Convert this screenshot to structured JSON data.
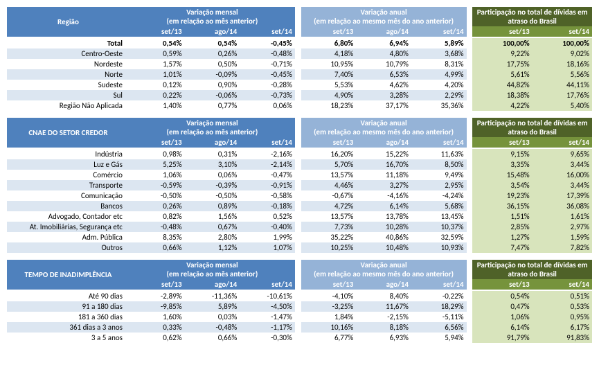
{
  "columns": {
    "monthly": {
      "title_line1": "Variação mensal",
      "title_line2": "(em relação ao mês anterior)",
      "periods": [
        "set/13",
        "ago/14",
        "set/14"
      ]
    },
    "annual": {
      "title_line1": "Variação anual",
      "title_line2": "(em relação ao mesmo mês do ano anterior)",
      "periods": [
        "set/13",
        "ago/14",
        "set/14"
      ]
    },
    "share": {
      "title_line1": "Participação no total de dívidas em",
      "title_line2": "atraso do Brasil",
      "periods": [
        "set/13",
        "set/14"
      ]
    }
  },
  "panels": [
    {
      "header": "Região",
      "rows": [
        {
          "label": "Total",
          "total": true,
          "monthly": [
            "0,54%",
            "0,54%",
            "-0,45%"
          ],
          "annual": [
            "6,80%",
            "6,94%",
            "5,89%"
          ],
          "share": [
            "100,00%",
            "100,00%"
          ]
        },
        {
          "label": "Centro-Oeste",
          "monthly": [
            "0,59%",
            "0,26%",
            "-0,48%"
          ],
          "annual": [
            "4,18%",
            "4,80%",
            "3,68%"
          ],
          "share": [
            "9,22%",
            "9,02%"
          ]
        },
        {
          "label": "Nordeste",
          "monthly": [
            "1,57%",
            "0,50%",
            "-0,71%"
          ],
          "annual": [
            "10,95%",
            "10,79%",
            "8,31%"
          ],
          "share": [
            "17,75%",
            "18,16%"
          ]
        },
        {
          "label": "Norte",
          "monthly": [
            "1,01%",
            "-0,09%",
            "-0,45%"
          ],
          "annual": [
            "7,40%",
            "6,53%",
            "4,99%"
          ],
          "share": [
            "5,61%",
            "5,56%"
          ]
        },
        {
          "label": "Sudeste",
          "monthly": [
            "0,12%",
            "0,90%",
            "-0,28%"
          ],
          "annual": [
            "5,53%",
            "4,62%",
            "4,20%"
          ],
          "share": [
            "44,82%",
            "44,11%"
          ]
        },
        {
          "label": "Sul",
          "monthly": [
            "0,22%",
            "-0,06%",
            "-0,73%"
          ],
          "annual": [
            "4,90%",
            "3,28%",
            "2,29%"
          ],
          "share": [
            "18,38%",
            "17,76%"
          ]
        },
        {
          "label": "Região Não Aplicada",
          "monthly": [
            "1,40%",
            "0,77%",
            "0,06%"
          ],
          "annual": [
            "18,23%",
            "37,17%",
            "35,36%"
          ],
          "share": [
            "4,22%",
            "5,40%"
          ]
        }
      ]
    },
    {
      "header": "CNAE DO SETOR CREDOR",
      "rows": [
        {
          "label": "Indústria",
          "monthly": [
            "0,98%",
            "0,31%",
            "-2,16%"
          ],
          "annual": [
            "16,20%",
            "15,22%",
            "11,63%"
          ],
          "share": [
            "9,15%",
            "9,65%"
          ]
        },
        {
          "label": "Luz e Gás",
          "monthly": [
            "5,25%",
            "3,10%",
            "-2,14%"
          ],
          "annual": [
            "5,70%",
            "16,70%",
            "8,50%"
          ],
          "share": [
            "3,35%",
            "3,44%"
          ]
        },
        {
          "label": "Comércio",
          "monthly": [
            "1,06%",
            "0,06%",
            "-0,47%"
          ],
          "annual": [
            "13,57%",
            "11,18%",
            "9,49%"
          ],
          "share": [
            "15,48%",
            "16,00%"
          ]
        },
        {
          "label": "Transporte",
          "monthly": [
            "-0,59%",
            "-0,39%",
            "-0,91%"
          ],
          "annual": [
            "4,46%",
            "3,27%",
            "2,95%"
          ],
          "share": [
            "3,54%",
            "3,44%"
          ]
        },
        {
          "label": "Comunicação",
          "monthly": [
            "-0,50%",
            "-0,50%",
            "-0,58%"
          ],
          "annual": [
            "-0,67%",
            "-4,16%",
            "-4,24%"
          ],
          "share": [
            "19,23%",
            "17,39%"
          ]
        },
        {
          "label": "Bancos",
          "monthly": [
            "0,26%",
            "0,89%",
            "-0,18%"
          ],
          "annual": [
            "4,72%",
            "6,14%",
            "5,68%"
          ],
          "share": [
            "36,15%",
            "36,08%"
          ]
        },
        {
          "label": "Advogado, Contador etc",
          "monthly": [
            "0,82%",
            "1,56%",
            "0,52%"
          ],
          "annual": [
            "13,57%",
            "13,78%",
            "13,45%"
          ],
          "share": [
            "1,51%",
            "1,61%"
          ]
        },
        {
          "label": "At. Imobiliárias, Segurança etc",
          "monthly": [
            "-0,48%",
            "0,67%",
            "-0,40%"
          ],
          "annual": [
            "7,73%",
            "10,28%",
            "10,37%"
          ],
          "share": [
            "2,85%",
            "2,97%"
          ]
        },
        {
          "label": "Adm. Pública",
          "monthly": [
            "8,35%",
            "2,80%",
            "1,99%"
          ],
          "annual": [
            "35,22%",
            "40,86%",
            "32,59%"
          ],
          "share": [
            "1,27%",
            "1,59%"
          ]
        },
        {
          "label": "Outros",
          "monthly": [
            "0,66%",
            "1,12%",
            "1,07%"
          ],
          "annual": [
            "10,25%",
            "10,48%",
            "10,93%"
          ],
          "share": [
            "7,47%",
            "7,82%"
          ]
        }
      ]
    },
    {
      "header": "TEMPO DE INADIMPLÊNCIA",
      "rows": [
        {
          "label": "Até 90 dias",
          "monthly": [
            "-2,89%",
            "-11,36%",
            "-10,61%"
          ],
          "annual": [
            "-4,10%",
            "8,40%",
            "-0,22%"
          ],
          "share": [
            "0,54%",
            "0,51%"
          ]
        },
        {
          "label": "91 a 180 dias",
          "monthly": [
            "-9,85%",
            "5,89%",
            "-4,50%"
          ],
          "annual": [
            "-3,25%",
            "11,67%",
            "18,29%"
          ],
          "share": [
            "0,47%",
            "0,53%"
          ]
        },
        {
          "label": "181 a 360 dias",
          "monthly": [
            "1,60%",
            "0,03%",
            "-1,47%"
          ],
          "annual": [
            "1,84%",
            "-2,15%",
            "-5,11%"
          ],
          "share": [
            "1,06%",
            "0,95%"
          ]
        },
        {
          "label": "361 dias a 3 anos",
          "monthly": [
            "0,33%",
            "-0,48%",
            "-1,17%"
          ],
          "annual": [
            "10,16%",
            "8,18%",
            "6,56%"
          ],
          "share": [
            "6,14%",
            "6,17%"
          ]
        },
        {
          "label": "3 a 5 anos",
          "monthly": [
            "0,62%",
            "0,66%",
            "-0,30%"
          ],
          "annual": [
            "6,77%",
            "6,93%",
            "5,94%"
          ],
          "share": [
            "91,79%",
            "91,83%"
          ]
        }
      ]
    }
  ],
  "style": {
    "header_blue": "#4f81bd",
    "header_lightblue": "#95b3d7",
    "header_darkgreen": "#4f6228",
    "header_medgreen": "#76933c",
    "row_alt": "#dce6f1",
    "share_fill": "#d8e4bc",
    "font_size_pt": 11
  }
}
